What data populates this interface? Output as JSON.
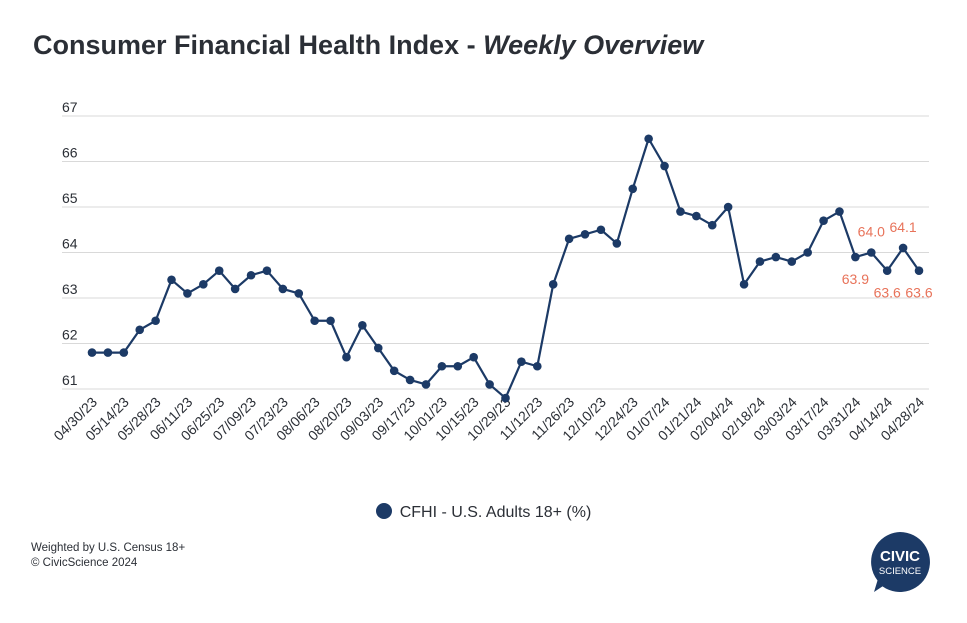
{
  "title": "Consumer Financial Health Index - ",
  "title_italic": "Weekly Overview",
  "legend_label": "CFHI - U.S. Adults 18+ (%)",
  "footer": {
    "line1": "Weighted by U.S. Census 18+",
    "line2": "© CivicScience 2024"
  },
  "logo": {
    "line1": "CIVIC",
    "line2": "SCIENCE",
    "color": "#1c3a66"
  },
  "colors": {
    "series": "#1c3a66",
    "label": "#e8735a",
    "grid": "#d9d9d9",
    "text": "#2b2f36"
  },
  "chart_data": {
    "type": "line",
    "title": "Consumer Financial Health Index - Weekly Overview",
    "xlabel": "",
    "ylabel": "",
    "ylim": [
      61,
      67
    ],
    "yticks": [
      61,
      62,
      63,
      64,
      65,
      66,
      67
    ],
    "grid": true,
    "legend": "bottom",
    "x_tick_labels": [
      "04/30/23",
      "05/14/23",
      "05/28/23",
      "06/11/23",
      "06/25/23",
      "07/09/23",
      "07/23/23",
      "08/06/23",
      "08/20/23",
      "09/03/23",
      "09/17/23",
      "10/01/23",
      "10/15/23",
      "10/29/23",
      "11/12/23",
      "11/26/23",
      "12/10/23",
      "12/24/23",
      "01/07/24",
      "01/21/24",
      "02/04/24",
      "02/18/24",
      "03/03/24",
      "03/17/24",
      "03/31/24",
      "04/14/24",
      "04/28/24"
    ],
    "x": [
      "04/30/23",
      "05/07/23",
      "05/14/23",
      "05/21/23",
      "05/28/23",
      "06/04/23",
      "06/11/23",
      "06/18/23",
      "06/25/23",
      "07/02/23",
      "07/09/23",
      "07/16/23",
      "07/23/23",
      "07/30/23",
      "08/06/23",
      "08/13/23",
      "08/20/23",
      "08/27/23",
      "09/03/23",
      "09/10/23",
      "09/17/23",
      "09/24/23",
      "10/01/23",
      "10/08/23",
      "10/15/23",
      "10/22/23",
      "10/29/23",
      "11/05/23",
      "11/12/23",
      "11/19/23",
      "11/26/23",
      "12/03/23",
      "12/10/23",
      "12/17/23",
      "12/24/23",
      "12/31/23",
      "01/07/24",
      "01/14/24",
      "01/21/24",
      "01/28/24",
      "02/04/24",
      "02/11/24",
      "02/18/24",
      "02/25/24",
      "03/03/24",
      "03/10/24",
      "03/17/24",
      "03/24/24",
      "03/31/24",
      "04/07/24",
      "04/14/24",
      "04/21/24",
      "04/28/24"
    ],
    "series": [
      {
        "name": "CFHI - U.S. Adults 18+ (%)",
        "values": [
          61.8,
          61.8,
          61.8,
          62.3,
          62.5,
          63.4,
          63.1,
          63.3,
          63.6,
          63.2,
          63.5,
          63.6,
          63.2,
          63.1,
          62.5,
          62.5,
          61.7,
          62.4,
          61.9,
          61.4,
          61.2,
          61.1,
          61.5,
          61.5,
          61.7,
          61.1,
          60.8,
          61.6,
          61.5,
          63.3,
          64.3,
          64.4,
          64.5,
          64.2,
          65.4,
          66.5,
          65.9,
          64.9,
          64.8,
          64.6,
          65.0,
          63.3,
          63.8,
          63.9,
          63.8,
          64.0,
          64.7,
          64.9,
          63.9,
          64.0,
          63.6,
          64.1,
          63.6
        ]
      }
    ],
    "data_labels": [
      {
        "index": 48,
        "text": "63.9",
        "position": "below"
      },
      {
        "index": 49,
        "text": "64.0",
        "position": "above"
      },
      {
        "index": 50,
        "text": "63.6",
        "position": "below"
      },
      {
        "index": 51,
        "text": "64.1",
        "position": "above"
      },
      {
        "index": 52,
        "text": "63.6",
        "position": "below"
      }
    ]
  }
}
